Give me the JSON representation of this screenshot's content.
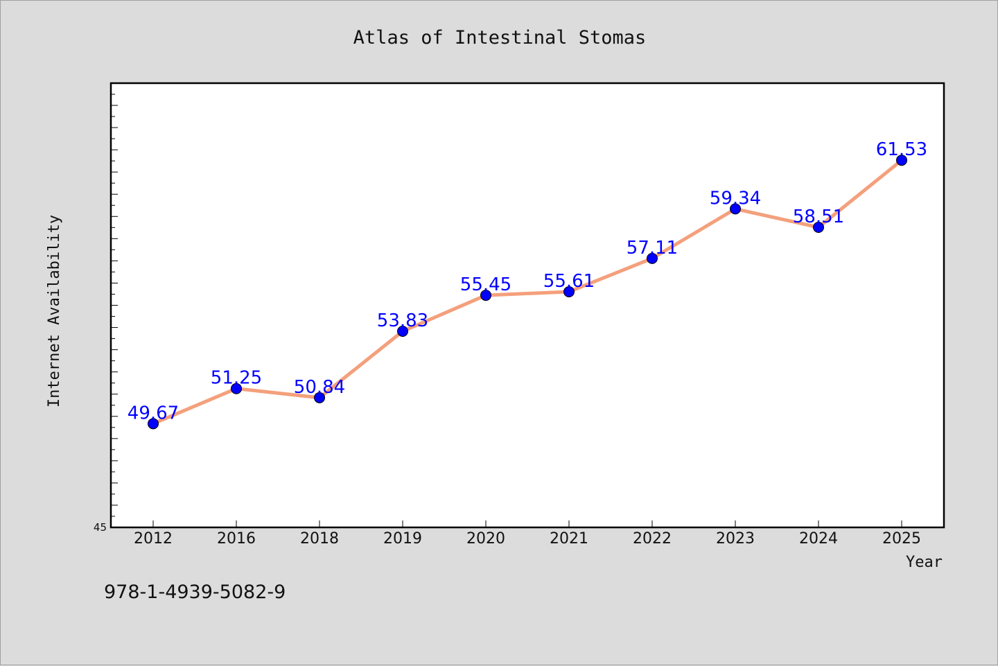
{
  "chart_data": {
    "type": "line",
    "title": "Atlas of Intestinal Stomas",
    "xlabel": "Year",
    "ylabel": "Internet Availability",
    "categories": [
      "2012",
      "2016",
      "2018",
      "2019",
      "2020",
      "2021",
      "2022",
      "2023",
      "2024",
      "2025"
    ],
    "series": [
      {
        "values": [
          49.67,
          51.25,
          50.84,
          53.83,
          55.45,
          55.61,
          57.11,
          59.34,
          58.51,
          61.53
        ],
        "labels": [
          "49.67",
          "51.25",
          "50.84",
          "53.83",
          "55.45",
          "55.61",
          "57.11",
          "59.34",
          "58.51",
          "61.53"
        ],
        "line_color": "#f4a07c",
        "marker_color": "#0000ff"
      }
    ],
    "ylim": [
      45,
      65
    ],
    "y_tick_labels": [
      "45"
    ],
    "grid": false,
    "plot_background": "#ffffff",
    "figure_background": "#dcdcdc"
  },
  "annotation": {
    "isbn": "978-1-4939-5082-9"
  }
}
